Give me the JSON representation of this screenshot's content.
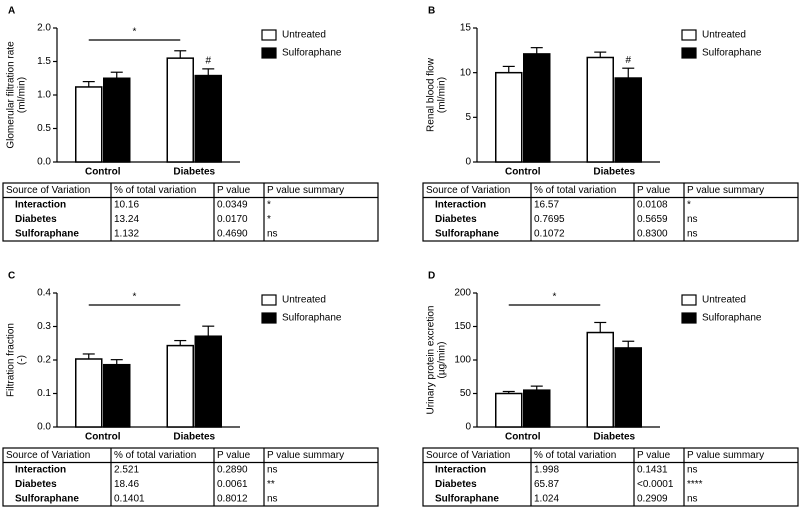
{
  "chart_data": [
    {
      "type": "bar",
      "label": "A",
      "ylabel": [
        "Glomerular filtration rate",
        "(ml/min)"
      ],
      "categories": [
        "Control",
        "Diabetes"
      ],
      "series": [
        {
          "name": "Untreated",
          "color": "#ffffff",
          "values": [
            1.12,
            1.55
          ],
          "errors": [
            0.08,
            0.11
          ]
        },
        {
          "name": "Sulforaphane",
          "color": "#000000",
          "values": [
            1.25,
            1.29
          ],
          "errors": [
            0.09,
            0.1
          ],
          "marks": [
            null,
            "#"
          ]
        }
      ],
      "bracket": "*",
      "ylim": [
        0,
        2.0
      ],
      "yticks": [
        {
          "value": 0,
          "label": "0.0"
        },
        0.5,
        {
          "value": 1,
          "label": "1.0"
        },
        1.5,
        {
          "value": 2,
          "label": "2.0"
        }
      ]
    },
    {
      "type": "bar",
      "label": "B",
      "ylabel": [
        "Renal blood flow",
        "(ml/min)"
      ],
      "categories": [
        "Control",
        "Diabetes"
      ],
      "series": [
        {
          "name": "Untreated",
          "color": "#ffffff",
          "values": [
            10.0,
            11.7
          ],
          "errors": [
            0.7,
            0.6
          ]
        },
        {
          "name": "Sulforaphane",
          "color": "#000000",
          "values": [
            12.1,
            9.4
          ],
          "errors": [
            0.7,
            1.1
          ],
          "marks": [
            null,
            "#"
          ]
        }
      ],
      "ylim": [
        0,
        15
      ],
      "yticks": [
        0,
        5,
        10,
        15
      ]
    },
    {
      "type": "bar",
      "label": "C",
      "ylabel": [
        "Filtration fraction",
        "(-)"
      ],
      "categories": [
        "Control",
        "Diabetes"
      ],
      "series": [
        {
          "name": "Untreated",
          "color": "#ffffff",
          "values": [
            0.203,
            0.243
          ],
          "errors": [
            0.015,
            0.015
          ]
        },
        {
          "name": "Sulforaphane",
          "color": "#000000",
          "values": [
            0.186,
            0.271
          ],
          "errors": [
            0.015,
            0.03
          ]
        }
      ],
      "bracket": "*",
      "ylim": [
        0,
        0.4
      ],
      "yticks": [
        {
          "value": 0,
          "label": "0.0"
        },
        0.1,
        0.2,
        0.3,
        0.4
      ]
    },
    {
      "type": "bar",
      "label": "D",
      "ylabel": [
        "Urinary protein excretion",
        "(µg/min)"
      ],
      "categories": [
        "Control",
        "Diabetes"
      ],
      "series": [
        {
          "name": "Untreated",
          "color": "#ffffff",
          "values": [
            50,
            141
          ],
          "errors": [
            3,
            15
          ]
        },
        {
          "name": "Sulforaphane",
          "color": "#000000",
          "values": [
            55,
            118
          ],
          "errors": [
            6,
            10
          ]
        }
      ],
      "bracket": "*",
      "ylim": [
        0,
        200
      ],
      "yticks": [
        0,
        50,
        100,
        150,
        200
      ]
    }
  ],
  "tables": [
    {
      "header": [
        "Source of Variation",
        "% of total variation",
        "P value",
        "P value summary"
      ],
      "rows": [
        [
          "Interaction",
          "10.16",
          "0.0349",
          "*"
        ],
        [
          "Diabetes",
          "13.24",
          "0.0170",
          "*"
        ],
        [
          "Sulforaphane",
          "1.132",
          "0.4690",
          "ns"
        ]
      ]
    },
    {
      "header": [
        "Source of Variation",
        "% of total variation",
        "P value",
        "P value summary"
      ],
      "rows": [
        [
          "Interaction",
          "16.57",
          "0.0108",
          "*"
        ],
        [
          "Diabetes",
          "0.7695",
          "0.5659",
          "ns"
        ],
        [
          "Sulforaphane",
          "0.1072",
          "0.8300",
          "ns"
        ]
      ]
    },
    {
      "header": [
        "Source of Variation",
        "% of total variation",
        "P value",
        "P value summary"
      ],
      "rows": [
        [
          "Interaction",
          "2.521",
          "0.2890",
          "ns"
        ],
        [
          "Diabetes",
          "18.46",
          "0.0061",
          "**"
        ],
        [
          "Sulforaphane",
          "0.1401",
          "0.8012",
          "ns"
        ]
      ]
    },
    {
      "header": [
        "Source of Variation",
        "% of total variation",
        "P value",
        "P value summary"
      ],
      "rows": [
        [
          "Interaction",
          "1.998",
          "0.1431",
          "ns"
        ],
        [
          "Diabetes",
          "65.87",
          "<0.0001",
          "****"
        ],
        [
          "Sulforaphane",
          "1.024",
          "0.2909",
          "ns"
        ]
      ]
    }
  ]
}
